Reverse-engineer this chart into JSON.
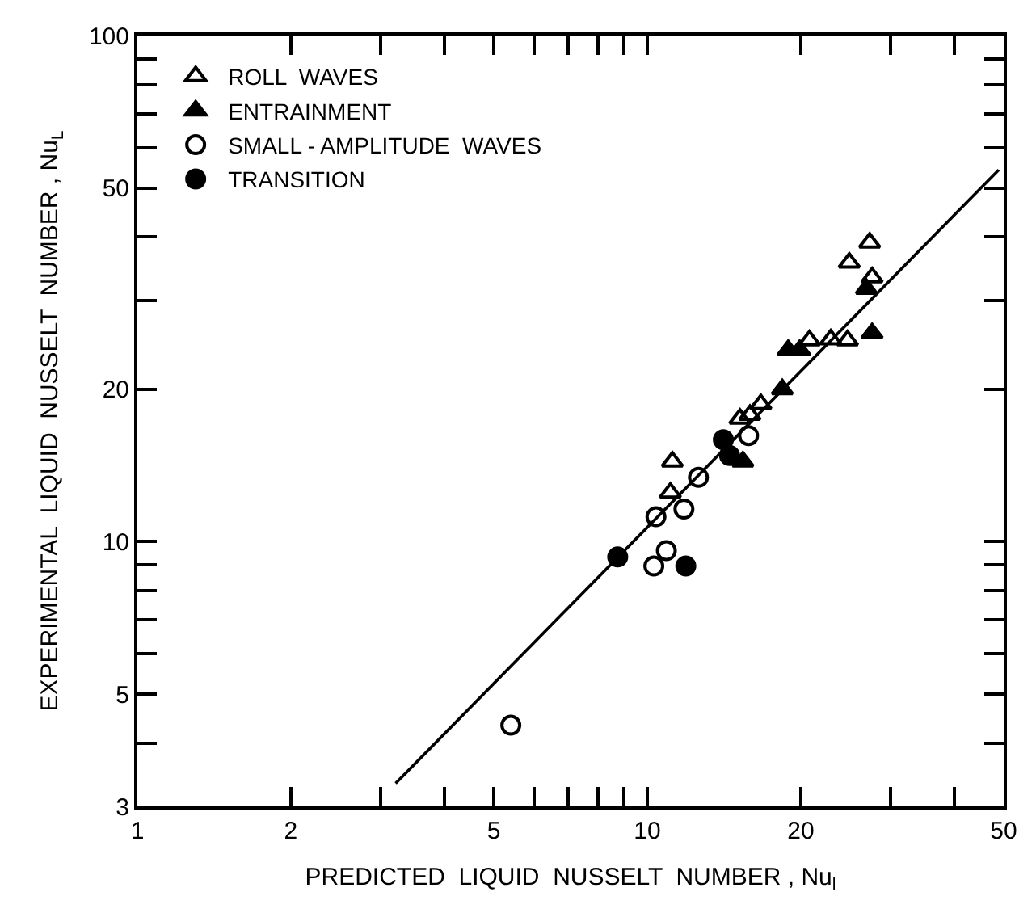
{
  "chart_data": {
    "type": "scatter",
    "xlabel": "PREDICTED  LIQUID  NUSSELT  NUMBER , Nu$_{l}$",
    "ylabel": "EXPERIMENTAL  LIQUID  NUSSELT  NUMBER , Nu$_{L}$",
    "log": "xy",
    "legend": "top left",
    "xlim": [
      1,
      50
    ],
    "ylim": [
      3,
      100
    ],
    "xticks": [
      1,
      2,
      {
        "value": 3,
        "label": null
      },
      {
        "value": 4,
        "label": null
      },
      5,
      {
        "value": 6,
        "label": null
      },
      {
        "value": 7,
        "label": null
      },
      {
        "value": 8,
        "label": null
      },
      {
        "value": 9,
        "label": null
      },
      10,
      20,
      {
        "value": 30,
        "label": null
      },
      {
        "value": 40,
        "label": null
      },
      50
    ],
    "yticks": [
      3,
      {
        "value": 4,
        "label": null
      },
      5,
      {
        "value": 6,
        "label": null
      },
      {
        "value": 7,
        "label": null
      },
      {
        "value": 8,
        "label": null
      },
      {
        "value": 9,
        "label": null
      },
      10,
      20,
      {
        "value": 30,
        "label": null
      },
      {
        "value": 40,
        "label": null
      },
      50,
      {
        "value": 60,
        "label": null
      },
      {
        "value": 70,
        "label": null
      },
      {
        "value": 80,
        "label": null
      },
      {
        "value": 90,
        "label": null
      },
      100
    ],
    "series": [
      {
        "name": "ROLL  WAVES",
        "color": "#000000",
        "marker": "triangle-open",
        "x": [
          27.3,
          24.9,
          27.6,
          20.8,
          22.9,
          24.7,
          16.7,
          15.9,
          15.2,
          11.2,
          11.1
        ],
        "values": [
          39.0,
          35.6,
          33.3,
          25.0,
          25.1,
          25.0,
          18.7,
          17.8,
          17.5,
          14.4,
          12.5
        ]
      },
      {
        "name": "ENTRAINMENT",
        "color": "#000000",
        "marker": "triangle",
        "x": [
          26.9,
          27.6,
          18.9,
          19.9,
          18.4,
          15.4
        ],
        "values": [
          31.6,
          25.8,
          23.9,
          23.9,
          20.0,
          14.4
        ]
      },
      {
        "name": "SMALL - AMPLITUDE  WAVES",
        "color": "#000000",
        "marker": "circle-open",
        "x": [
          15.8,
          12.6,
          10.4,
          11.8,
          10.9,
          10.3,
          5.4
        ],
        "values": [
          16.2,
          13.4,
          11.2,
          11.6,
          9.6,
          8.95,
          4.34
        ]
      },
      {
        "name": "TRANSITION",
        "color": "#000000",
        "marker": "circle",
        "x": [
          8.75,
          11.9,
          14.1,
          14.5
        ],
        "values": [
          9.33,
          8.95,
          15.9,
          14.8
        ]
      },
      {
        "type": "line",
        "color": "#000000",
        "line_style": "solid",
        "x": [
          3.21,
          48.9
        ],
        "values": [
          3.33,
          54.3
        ]
      }
    ]
  }
}
